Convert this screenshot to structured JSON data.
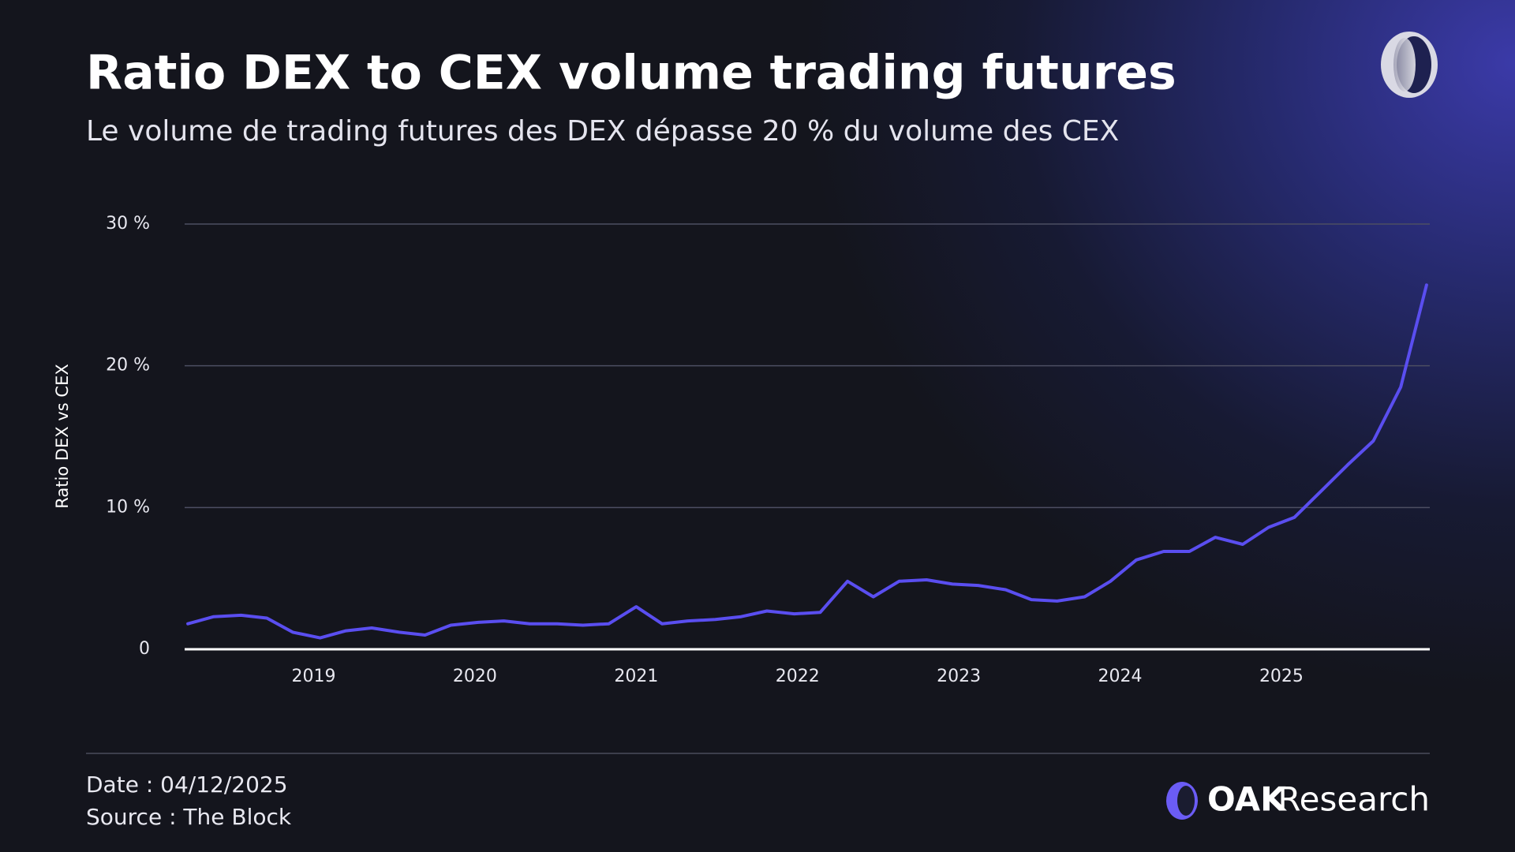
{
  "chart_data": {
    "type": "line",
    "title": "Ratio DEX to CEX volume trading futures",
    "subtitle": "Le volume de trading futures des DEX dépasse 20 % du volume des CEX",
    "y_label": "Ratio DEX vs CEX",
    "x": [
      2018.22,
      2018.38,
      2018.55,
      2018.71,
      2018.87,
      2019.04,
      2019.2,
      2019.36,
      2019.53,
      2019.69,
      2019.85,
      2020.02,
      2020.18,
      2020.34,
      2020.51,
      2020.67,
      2020.83,
      2021.0,
      2021.16,
      2021.32,
      2021.49,
      2021.65,
      2021.81,
      2021.98,
      2022.14,
      2022.31,
      2022.47,
      2022.63,
      2022.8,
      2022.96,
      2023.12,
      2023.29,
      2023.45,
      2023.61,
      2023.78,
      2023.94,
      2024.1,
      2024.27,
      2024.43,
      2024.59,
      2024.76,
      2024.92,
      2025.08,
      2025.25,
      2025.41,
      2025.57,
      2025.74,
      2025.9
    ],
    "series": [
      {
        "name": "Ratio DEX vs CEX",
        "color": "#5a4ef0",
        "values": [
          1.8,
          2.3,
          2.4,
          2.2,
          1.2,
          0.8,
          1.3,
          1.5,
          1.2,
          1.0,
          1.7,
          1.9,
          2.0,
          1.8,
          1.8,
          1.7,
          1.8,
          3.0,
          1.8,
          2.0,
          2.1,
          2.3,
          2.7,
          2.5,
          2.6,
          4.8,
          3.7,
          4.8,
          4.9,
          4.6,
          4.5,
          4.2,
          3.5,
          3.4,
          3.7,
          4.8,
          6.3,
          6.9,
          6.9,
          7.9,
          7.4,
          8.6,
          9.3,
          11.2,
          13.0,
          14.7,
          18.5,
          25.7
        ]
      }
    ],
    "xlim": [
      2018.2,
      2025.92
    ],
    "xticks": [
      2019,
      2020,
      2021,
      2022,
      2023,
      2024,
      2025
    ],
    "ylim": [
      0,
      30
    ],
    "yticks": [
      0,
      {
        "value": 10,
        "label": "10 %"
      },
      {
        "value": 20,
        "label": "20 %"
      },
      {
        "value": 30,
        "label": "30 %"
      }
    ],
    "grid": true
  },
  "footer": {
    "date": "Date : 04/12/2025",
    "source": "Source : The Block",
    "brand": "OAK",
    "brand_suffix": "Research"
  }
}
